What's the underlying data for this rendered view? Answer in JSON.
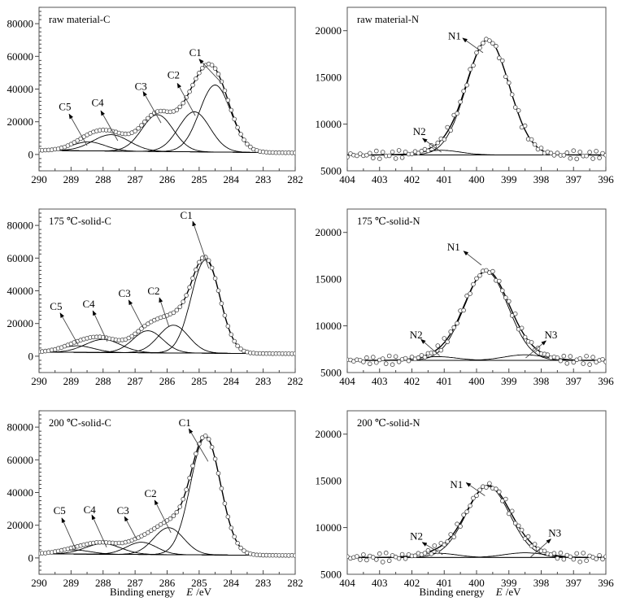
{
  "chart_data": [
    {
      "type": "line",
      "title": "raw material-C",
      "xlim": [
        290,
        282
      ],
      "ylim": [
        -10000,
        90000
      ],
      "xticks": [
        290,
        289,
        288,
        287,
        286,
        285,
        284,
        283,
        282
      ],
      "yticks": [
        0,
        20000,
        40000,
        60000,
        80000
      ],
      "xlabel": null,
      "grid": false,
      "background": [
        2500,
        1000
      ],
      "components": [
        {
          "name": "C1",
          "center": 284.5,
          "height": 41000,
          "fwhm": 1.15
        },
        {
          "name": "C2",
          "center": 285.15,
          "height": 24500,
          "fwhm": 1.15
        },
        {
          "name": "C3",
          "center": 286.3,
          "height": 22500,
          "fwhm": 1.15
        },
        {
          "name": "C4",
          "center": 287.75,
          "height": 10000,
          "fwhm": 1.35
        },
        {
          "name": "C5",
          "center": 288.45,
          "height": 5500,
          "fwhm": 1.2
        }
      ],
      "annotations": [
        {
          "text": "C1",
          "text_at": [
            285.12,
            62200
          ],
          "arrow_tip": [
            285.0,
            58300
          ],
          "arrow_tail": [
            284.31,
            44000
          ]
        },
        {
          "text": "C2",
          "text_at": [
            285.8,
            48400
          ],
          "arrow_tip": [
            285.68,
            43500
          ],
          "arrow_tail": [
            285.12,
            23700
          ]
        },
        {
          "text": "C3",
          "text_at": [
            286.82,
            41500
          ],
          "arrow_tip": [
            286.75,
            38500
          ],
          "arrow_tail": [
            286.19,
            19300
          ]
        },
        {
          "text": "C4",
          "text_at": [
            288.17,
            31600
          ],
          "arrow_tip": [
            288.07,
            26700
          ],
          "arrow_tail": [
            287.54,
            8400
          ]
        },
        {
          "text": "C5",
          "text_at": [
            289.19,
            29100
          ],
          "arrow_tip": [
            289.06,
            24700
          ],
          "arrow_tail": [
            288.5,
            5400
          ]
        }
      ]
    },
    {
      "type": "line",
      "title": "raw material-N",
      "xlim": [
        404,
        396
      ],
      "ylim": [
        5000,
        22500
      ],
      "xticks": [
        404,
        403,
        402,
        401,
        400,
        399,
        398,
        397,
        396
      ],
      "yticks": [
        5000,
        10000,
        15000,
        20000
      ],
      "xlabel": null,
      "grid": false,
      "background": [
        6700,
        6700
      ],
      "components": [
        {
          "name": "N1",
          "center": 399.65,
          "height": 12300,
          "fwhm": 1.55
        },
        {
          "name": "N2",
          "center": 401.1,
          "height": 500,
          "fwhm": 1.4
        }
      ],
      "annotations": [
        {
          "text": "N1",
          "text_at": [
            400.68,
            19390
          ],
          "arrow_tip": [
            400.43,
            19200
          ],
          "arrow_tail": [
            399.8,
            17650
          ]
        },
        {
          "text": "N2",
          "text_at": [
            401.77,
            9160
          ],
          "arrow_tip": [
            401.67,
            8470
          ],
          "arrow_tail": [
            401.09,
            7000
          ]
        }
      ]
    },
    {
      "type": "line",
      "title": "175 ℃-solid-C",
      "xlim": [
        290,
        282
      ],
      "ylim": [
        -10000,
        90000
      ],
      "xticks": [
        290,
        289,
        288,
        287,
        286,
        285,
        284,
        283,
        282
      ],
      "yticks": [
        0,
        20000,
        40000,
        60000,
        80000
      ],
      "xlabel": null,
      "grid": false,
      "background": [
        2500,
        1500
      ],
      "components": [
        {
          "name": "C1",
          "center": 284.8,
          "height": 57000,
          "fwhm": 1.05
        },
        {
          "name": "C2",
          "center": 285.8,
          "height": 17000,
          "fwhm": 1.1
        },
        {
          "name": "C3",
          "center": 286.6,
          "height": 13500,
          "fwhm": 1.1
        },
        {
          "name": "C4",
          "center": 288.0,
          "height": 8000,
          "fwhm": 1.3
        },
        {
          "name": "C5",
          "center": 288.8,
          "height": 4000,
          "fwhm": 1.2
        }
      ],
      "annotations": [
        {
          "text": "C1",
          "text_at": [
            285.4,
            86000
          ],
          "arrow_tip": [
            285.2,
            82500
          ],
          "arrow_tail": [
            284.7,
            53700
          ]
        },
        {
          "text": "C2",
          "text_at": [
            286.42,
            39800
          ],
          "arrow_tip": [
            286.24,
            35800
          ],
          "arrow_tail": [
            285.94,
            17900
          ]
        },
        {
          "text": "C3",
          "text_at": [
            287.33,
            38300
          ],
          "arrow_tip": [
            287.2,
            34300
          ],
          "arrow_tail": [
            286.75,
            17400
          ]
        },
        {
          "text": "C4",
          "text_at": [
            288.45,
            31800
          ],
          "arrow_tip": [
            288.32,
            27800
          ],
          "arrow_tail": [
            287.87,
            9000
          ]
        },
        {
          "text": "C5",
          "text_at": [
            289.47,
            30300
          ],
          "arrow_tip": [
            289.34,
            26400
          ],
          "arrow_tail": [
            288.78,
            7000
          ]
        }
      ]
    },
    {
      "type": "line",
      "title": "175 ℃-solid-N",
      "xlim": [
        404,
        396
      ],
      "ylim": [
        5000,
        22500
      ],
      "xticks": [
        404,
        403,
        402,
        401,
        400,
        399,
        398,
        397,
        396
      ],
      "yticks": [
        5000,
        10000,
        15000,
        20000
      ],
      "xlabel": null,
      "grid": false,
      "background": [
        6300,
        6300
      ],
      "components": [
        {
          "name": "N1",
          "center": 399.7,
          "height": 9500,
          "fwhm": 1.6
        },
        {
          "name": "N2",
          "center": 401.2,
          "height": 400,
          "fwhm": 1.4
        },
        {
          "name": "N3",
          "center": 398.5,
          "height": 600,
          "fwhm": 1.5
        }
      ],
      "annotations": [
        {
          "text": "N1",
          "text_at": [
            400.71,
            18400
          ],
          "arrow_tip": [
            400.4,
            18000
          ],
          "arrow_tail": [
            399.85,
            16500
          ]
        },
        {
          "text": "N2",
          "text_at": [
            401.87,
            9000
          ],
          "arrow_tip": [
            401.72,
            8550
          ],
          "arrow_tail": [
            401.14,
            6800
          ]
        },
        {
          "text": "N3",
          "text_at": [
            397.7,
            9000
          ],
          "arrow_tip": [
            397.85,
            8400
          ],
          "arrow_tail": [
            398.48,
            6560
          ]
        }
      ]
    },
    {
      "type": "line",
      "title": "200 ℃-solid-C",
      "xlim": [
        290,
        282
      ],
      "ylim": [
        -10000,
        90000
      ],
      "xticks": [
        290,
        289,
        288,
        287,
        286,
        285,
        284,
        283,
        282
      ],
      "yticks": [
        0,
        20000,
        40000,
        60000,
        80000
      ],
      "xlabel": {
        "text": "Binding energy",
        "symbol": "E",
        "unit": "/eV"
      },
      "grid": false,
      "background": [
        2500,
        1500
      ],
      "components": [
        {
          "name": "C1",
          "center": 284.8,
          "height": 72000,
          "fwhm": 1.1
        },
        {
          "name": "C2",
          "center": 285.95,
          "height": 16500,
          "fwhm": 1.1
        },
        {
          "name": "C3",
          "center": 286.8,
          "height": 7500,
          "fwhm": 1.1
        },
        {
          "name": "C4",
          "center": 288.0,
          "height": 6500,
          "fwhm": 1.3
        },
        {
          "name": "C5",
          "center": 288.9,
          "height": 2500,
          "fwhm": 1.2
        }
      ],
      "annotations": [
        {
          "text": "C1",
          "text_at": [
            285.45,
            82500
          ],
          "arrow_tip": [
            285.32,
            79000
          ],
          "arrow_tail": [
            284.72,
            59000
          ]
        },
        {
          "text": "C2",
          "text_at": [
            286.52,
            39300
          ],
          "arrow_tip": [
            286.39,
            35300
          ],
          "arrow_tail": [
            285.88,
            15400
          ]
        },
        {
          "text": "C3",
          "text_at": [
            287.38,
            28800
          ],
          "arrow_tip": [
            287.33,
            25300
          ],
          "arrow_tail": [
            286.95,
            11400
          ]
        },
        {
          "text": "C4",
          "text_at": [
            288.42,
            29300
          ],
          "arrow_tip": [
            288.35,
            26300
          ],
          "arrow_tail": [
            287.89,
            6500
          ]
        },
        {
          "text": "C5",
          "text_at": [
            289.36,
            28800
          ],
          "arrow_tip": [
            289.29,
            24400
          ],
          "arrow_tail": [
            288.86,
            5500
          ]
        }
      ]
    },
    {
      "type": "line",
      "title": "200 ℃-solid-N",
      "xlim": [
        404,
        396
      ],
      "ylim": [
        5000,
        22500
      ],
      "xticks": [
        404,
        403,
        402,
        401,
        400,
        399,
        398,
        397,
        396
      ],
      "yticks": [
        5000,
        10000,
        15000,
        20000
      ],
      "xlabel": {
        "text": "Binding energy",
        "symbol": "E",
        "unit": "/eV"
      },
      "grid": false,
      "background": [
        6800,
        6800
      ],
      "components": [
        {
          "name": "N1",
          "center": 399.65,
          "height": 7600,
          "fwhm": 1.6
        },
        {
          "name": "N2",
          "center": 401.2,
          "height": 450,
          "fwhm": 1.4
        },
        {
          "name": "N3",
          "center": 398.5,
          "height": 500,
          "fwhm": 1.5
        }
      ],
      "annotations": [
        {
          "text": "N1",
          "text_at": [
            400.62,
            14560
          ],
          "arrow_tip": [
            400.32,
            14800
          ],
          "arrow_tail": [
            399.74,
            13400
          ]
        },
        {
          "text": "N2",
          "text_at": [
            401.86,
            9030
          ],
          "arrow_tip": [
            401.68,
            8420
          ],
          "arrow_tail": [
            401.05,
            7100
          ]
        },
        {
          "text": "N3",
          "text_at": [
            397.58,
            9390
          ],
          "arrow_tip": [
            397.7,
            8770
          ],
          "arrow_tail": [
            398.33,
            6840
          ]
        }
      ]
    }
  ]
}
